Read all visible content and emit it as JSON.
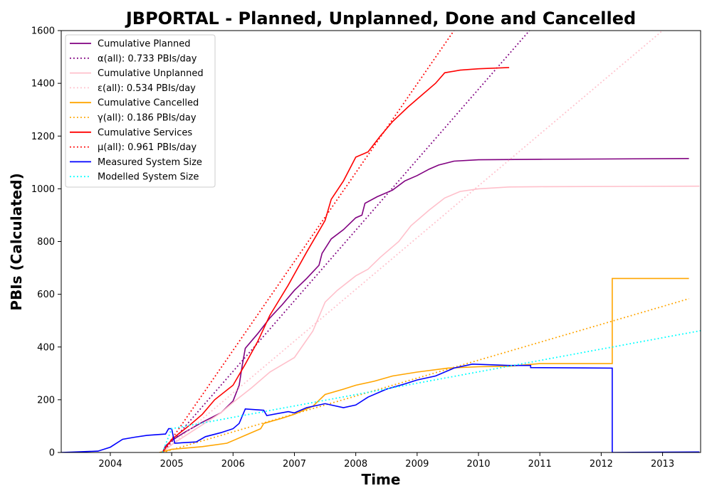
{
  "chart_data": {
    "type": "line",
    "title": "JBPORTAL - Planned, Unplanned, Done  and Cancelled",
    "xlabel": "Time",
    "ylabel": "PBIs (Calculated)",
    "xlim": [
      2003.2,
      2013.62
    ],
    "ylim": [
      0,
      1600
    ],
    "x_ticks": [
      "2004",
      "2005",
      "2006",
      "2007",
      "2008",
      "2009",
      "2010",
      "2011",
      "2012",
      "2013"
    ],
    "y_ticks": [
      "0",
      "200",
      "400",
      "600",
      "800",
      "1000",
      "1200",
      "1400",
      "1600"
    ],
    "grid": false,
    "legend_position": "top-left",
    "series": [
      {
        "name": "Cumulative Planned",
        "color": "#800080",
        "style": "solid",
        "points": [
          [
            2004.85,
            0
          ],
          [
            2004.9,
            25
          ],
          [
            2005.0,
            45
          ],
          [
            2005.2,
            75
          ],
          [
            2005.5,
            115
          ],
          [
            2005.8,
            150
          ],
          [
            2006.0,
            195
          ],
          [
            2006.1,
            255
          ],
          [
            2006.15,
            330
          ],
          [
            2006.2,
            395
          ],
          [
            2006.4,
            450
          ],
          [
            2006.6,
            510
          ],
          [
            2006.8,
            560
          ],
          [
            2007.0,
            615
          ],
          [
            2007.2,
            660
          ],
          [
            2007.4,
            710
          ],
          [
            2007.45,
            755
          ],
          [
            2007.6,
            810
          ],
          [
            2007.8,
            845
          ],
          [
            2008.0,
            890
          ],
          [
            2008.1,
            900
          ],
          [
            2008.15,
            945
          ],
          [
            2008.35,
            970
          ],
          [
            2008.6,
            995
          ],
          [
            2008.8,
            1030
          ],
          [
            2009.0,
            1050
          ],
          [
            2009.2,
            1075
          ],
          [
            2009.35,
            1090
          ],
          [
            2009.6,
            1105
          ],
          [
            2010.0,
            1110
          ],
          [
            2011.0,
            1112
          ],
          [
            2012.0,
            1113
          ],
          [
            2013.43,
            1115
          ]
        ]
      },
      {
        "name": "α(all): 0.733 PBIs/day",
        "color": "#800080",
        "style": "dotted",
        "points": [
          [
            2004.85,
            0
          ],
          [
            2010.83,
            1600
          ]
        ]
      },
      {
        "name": "Cumulative Unplanned",
        "color": "#ffc0cb",
        "style": "solid",
        "points": [
          [
            2004.85,
            0
          ],
          [
            2005.0,
            30
          ],
          [
            2005.4,
            90
          ],
          [
            2005.8,
            150
          ],
          [
            2006.0,
            190
          ],
          [
            2006.3,
            245
          ],
          [
            2006.6,
            305
          ],
          [
            2007.0,
            360
          ],
          [
            2007.3,
            460
          ],
          [
            2007.5,
            570
          ],
          [
            2007.7,
            615
          ],
          [
            2008.0,
            670
          ],
          [
            2008.2,
            695
          ],
          [
            2008.4,
            740
          ],
          [
            2008.7,
            800
          ],
          [
            2008.9,
            860
          ],
          [
            2009.2,
            920
          ],
          [
            2009.45,
            965
          ],
          [
            2009.7,
            990
          ],
          [
            2010.0,
            1000
          ],
          [
            2010.5,
            1007
          ],
          [
            2011.0,
            1008
          ],
          [
            2013.6,
            1010
          ]
        ]
      },
      {
        "name": "ε(all): 0.534 PBIs/day",
        "color": "#ffc0cb",
        "style": "dotted",
        "points": [
          [
            2004.85,
            0
          ],
          [
            2013.0,
            1600
          ]
        ]
      },
      {
        "name": "Cumulative Cancelled",
        "color": "#ffa500",
        "style": "solid",
        "points": [
          [
            2004.8,
            0
          ],
          [
            2005.0,
            12
          ],
          [
            2005.5,
            22
          ],
          [
            2005.9,
            35
          ],
          [
            2006.0,
            45
          ],
          [
            2006.2,
            65
          ],
          [
            2006.45,
            90
          ],
          [
            2006.5,
            110
          ],
          [
            2006.8,
            130
          ],
          [
            2007.0,
            145
          ],
          [
            2007.3,
            175
          ],
          [
            2007.5,
            220
          ],
          [
            2007.8,
            240
          ],
          [
            2008.0,
            255
          ],
          [
            2008.3,
            270
          ],
          [
            2008.6,
            290
          ],
          [
            2009.0,
            305
          ],
          [
            2009.5,
            320
          ],
          [
            2010.0,
            325
          ],
          [
            2010.5,
            327
          ],
          [
            2011.0,
            337
          ],
          [
            2012.18,
            337
          ],
          [
            2012.18,
            660
          ],
          [
            2013.43,
            660
          ]
        ]
      },
      {
        "name": "γ(all): 0.186 PBIs/day",
        "color": "#ffa500",
        "style": "dotted",
        "points": [
          [
            2004.85,
            0
          ],
          [
            2013.43,
            583
          ]
        ]
      },
      {
        "name": "Cumulative Services",
        "color": "#ff0000",
        "style": "solid",
        "points": [
          [
            2004.85,
            0
          ],
          [
            2005.0,
            50
          ],
          [
            2005.3,
            105
          ],
          [
            2005.5,
            145
          ],
          [
            2005.7,
            200
          ],
          [
            2006.0,
            255
          ],
          [
            2006.2,
            335
          ],
          [
            2006.4,
            420
          ],
          [
            2006.6,
            520
          ],
          [
            2006.9,
            635
          ],
          [
            2007.2,
            760
          ],
          [
            2007.4,
            840
          ],
          [
            2007.5,
            880
          ],
          [
            2007.6,
            960
          ],
          [
            2007.8,
            1030
          ],
          [
            2008.0,
            1120
          ],
          [
            2008.2,
            1140
          ],
          [
            2008.4,
            1200
          ],
          [
            2008.6,
            1255
          ],
          [
            2008.85,
            1310
          ],
          [
            2009.1,
            1360
          ],
          [
            2009.3,
            1400
          ],
          [
            2009.45,
            1440
          ],
          [
            2009.7,
            1450
          ],
          [
            2010.0,
            1455
          ],
          [
            2010.5,
            1460
          ]
        ]
      },
      {
        "name": "μ(all): 0.961 PBIs/day",
        "color": "#ff0000",
        "style": "dotted",
        "points": [
          [
            2004.85,
            0
          ],
          [
            2009.6,
            1600
          ]
        ]
      },
      {
        "name": "Measured System Size",
        "color": "#0000ff",
        "style": "solid",
        "points": [
          [
            2003.2,
            0
          ],
          [
            2003.8,
            5
          ],
          [
            2004.0,
            20
          ],
          [
            2004.2,
            50
          ],
          [
            2004.4,
            58
          ],
          [
            2004.6,
            65
          ],
          [
            2004.9,
            70
          ],
          [
            2004.95,
            90
          ],
          [
            2005.0,
            90
          ],
          [
            2005.05,
            35
          ],
          [
            2005.4,
            40
          ],
          [
            2005.55,
            60
          ],
          [
            2005.8,
            75
          ],
          [
            2006.0,
            90
          ],
          [
            2006.1,
            110
          ],
          [
            2006.2,
            165
          ],
          [
            2006.5,
            160
          ],
          [
            2006.55,
            140
          ],
          [
            2006.9,
            155
          ],
          [
            2007.0,
            150
          ],
          [
            2007.2,
            170
          ],
          [
            2007.5,
            185
          ],
          [
            2007.8,
            170
          ],
          [
            2008.0,
            180
          ],
          [
            2008.2,
            210
          ],
          [
            2008.5,
            240
          ],
          [
            2008.8,
            260
          ],
          [
            2009.0,
            275
          ],
          [
            2009.3,
            290
          ],
          [
            2009.6,
            320
          ],
          [
            2009.9,
            335
          ],
          [
            2010.5,
            330
          ],
          [
            2010.85,
            330
          ],
          [
            2010.85,
            322
          ],
          [
            2012.18,
            320
          ],
          [
            2012.18,
            0
          ],
          [
            2013.6,
            2
          ]
        ]
      },
      {
        "name": "Modelled System Size",
        "color": "#00ffff",
        "style": "dotted",
        "points": [
          [
            2004.85,
            0
          ],
          [
            2005.0,
            90
          ],
          [
            2013.62,
            462
          ]
        ]
      }
    ]
  }
}
